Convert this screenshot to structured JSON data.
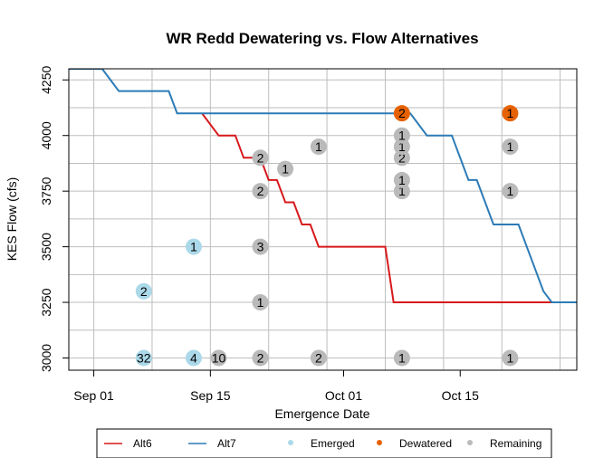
{
  "chart_data": {
    "type": "scatter",
    "title": "WR Redd Dewatering vs. Flow Alternatives",
    "xlabel": "Emergence Date",
    "ylabel": "KES Flow (cfs)",
    "x_ticks": [
      {
        "label": "Sep 01",
        "date": "2024-09-01"
      },
      {
        "label": "Sep 15",
        "date": "2024-09-15"
      },
      {
        "label": "Oct 01",
        "date": "2024-10-01"
      },
      {
        "label": "Oct 15",
        "date": "2024-10-15"
      }
    ],
    "xlim": [
      "2024-08-29",
      "2024-10-29"
    ],
    "y_ticks": [
      3000,
      3250,
      3500,
      3750,
      4000,
      4250
    ],
    "ylim": [
      2945,
      4300
    ],
    "grid": true,
    "legend_position": "bottom",
    "colors": {
      "Alt6": "#d7191c",
      "Alt7": "#2c7bb6",
      "Emerged": "#abd9e9",
      "Dewatered": "#e66101",
      "Remaining": "#bababa"
    },
    "series": [
      {
        "name": "Alt6",
        "kind": "line",
        "points": [
          [
            "2024-09-14",
            4100
          ],
          [
            "2024-09-16",
            4000
          ],
          [
            "2024-09-18",
            4000
          ],
          [
            "2024-09-19",
            3900
          ],
          [
            "2024-09-21",
            3900
          ],
          [
            "2024-09-22",
            3800
          ],
          [
            "2024-09-23",
            3800
          ],
          [
            "2024-09-24",
            3700
          ],
          [
            "2024-09-25",
            3700
          ],
          [
            "2024-09-26",
            3600
          ],
          [
            "2024-09-27",
            3600
          ],
          [
            "2024-09-28",
            3500
          ],
          [
            "2024-10-06",
            3500
          ],
          [
            "2024-10-07",
            3250
          ],
          [
            "2024-10-27",
            3250
          ]
        ]
      },
      {
        "name": "Alt7",
        "kind": "line",
        "points": [
          [
            "2024-08-29",
            4300
          ],
          [
            "2024-09-02",
            4300
          ],
          [
            "2024-09-04",
            4200
          ],
          [
            "2024-09-10",
            4200
          ],
          [
            "2024-09-11",
            4100
          ],
          [
            "2024-10-09",
            4100
          ],
          [
            "2024-10-11",
            4000
          ],
          [
            "2024-10-14",
            4000
          ],
          [
            "2024-10-16",
            3800
          ],
          [
            "2024-10-17",
            3800
          ],
          [
            "2024-10-19",
            3600
          ],
          [
            "2024-10-22",
            3600
          ],
          [
            "2024-10-25",
            3300
          ],
          [
            "2024-10-26",
            3250
          ],
          [
            "2024-10-29",
            3250
          ]
        ]
      },
      {
        "name": "Emerged",
        "kind": "points",
        "points": [
          {
            "date": "2024-09-07",
            "flow": 3000,
            "count": "32"
          },
          {
            "date": "2024-09-07",
            "flow": 3300,
            "count": "2"
          },
          {
            "date": "2024-09-13",
            "flow": 3000,
            "count": "4"
          },
          {
            "date": "2024-09-13",
            "flow": 3500,
            "count": "1"
          }
        ]
      },
      {
        "name": "Dewatered",
        "kind": "points",
        "points": [
          {
            "date": "2024-10-08",
            "flow": 4100,
            "count": "2"
          },
          {
            "date": "2024-10-21",
            "flow": 4100,
            "count": "1"
          }
        ]
      },
      {
        "name": "Remaining",
        "kind": "points",
        "points": [
          {
            "date": "2024-09-16",
            "flow": 3000,
            "count": "10"
          },
          {
            "date": "2024-09-21",
            "flow": 3000,
            "count": "2"
          },
          {
            "date": "2024-09-21",
            "flow": 3250,
            "count": "1"
          },
          {
            "date": "2024-09-21",
            "flow": 3500,
            "count": "3"
          },
          {
            "date": "2024-09-21",
            "flow": 3750,
            "count": "2"
          },
          {
            "date": "2024-09-21",
            "flow": 3900,
            "count": "2"
          },
          {
            "date": "2024-09-24",
            "flow": 3850,
            "count": "1"
          },
          {
            "date": "2024-09-28",
            "flow": 3000,
            "count": "2"
          },
          {
            "date": "2024-09-28",
            "flow": 3950,
            "count": "1"
          },
          {
            "date": "2024-10-08",
            "flow": 3000,
            "count": "1"
          },
          {
            "date": "2024-10-08",
            "flow": 3750,
            "count": "1"
          },
          {
            "date": "2024-10-08",
            "flow": 3800,
            "count": "1"
          },
          {
            "date": "2024-10-08",
            "flow": 3900,
            "count": "2"
          },
          {
            "date": "2024-10-08",
            "flow": 3950,
            "count": "1"
          },
          {
            "date": "2024-10-08",
            "flow": 4000,
            "count": "1"
          },
          {
            "date": "2024-10-21",
            "flow": 3000,
            "count": "1"
          },
          {
            "date": "2024-10-21",
            "flow": 3750,
            "count": "1"
          },
          {
            "date": "2024-10-21",
            "flow": 3950,
            "count": "1"
          }
        ]
      }
    ],
    "legend": [
      "Alt6",
      "Alt7",
      "Emerged",
      "Dewatered",
      "Remaining"
    ]
  }
}
